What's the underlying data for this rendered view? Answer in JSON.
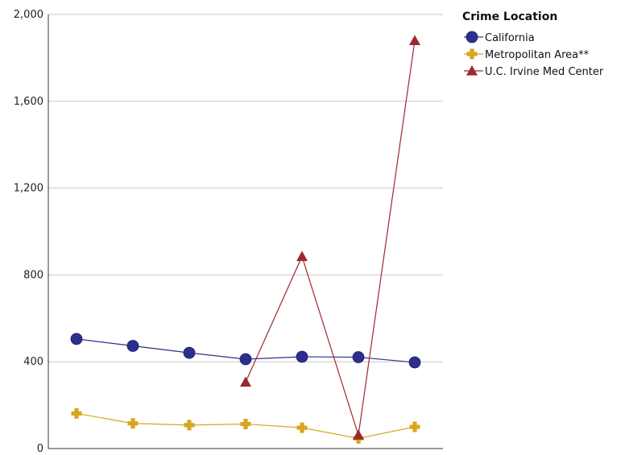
{
  "chart_data": {
    "type": "line",
    "title": "",
    "xlabel": "",
    "ylabel": "",
    "x": [
      1,
      2,
      3,
      4,
      5,
      6,
      7
    ],
    "ylim": [
      0,
      2000
    ],
    "yticks": [
      0,
      400,
      800,
      1200,
      1600,
      2000
    ],
    "ytick_labels": [
      "0",
      "400",
      "800",
      "1,200",
      "1,600",
      "2,000"
    ],
    "grid": "horizontal",
    "legend": {
      "title": "Crime Location",
      "placement": "top-right"
    },
    "series": [
      {
        "name": "California",
        "values": [
          505,
          473,
          441,
          412,
          423,
          421,
          397
        ],
        "color": "#2e2e8f",
        "marker": "circle"
      },
      {
        "name": "Metropolitan Area**",
        "values": [
          162,
          116,
          108,
          113,
          96,
          47,
          100
        ],
        "color": "#d9a520",
        "marker": "plus"
      },
      {
        "name": "U.C. Irvine Med Center",
        "values": [
          null,
          null,
          null,
          306,
          885,
          62,
          1880
        ],
        "color": "#9b2a2e",
        "marker": "triangle"
      }
    ]
  }
}
